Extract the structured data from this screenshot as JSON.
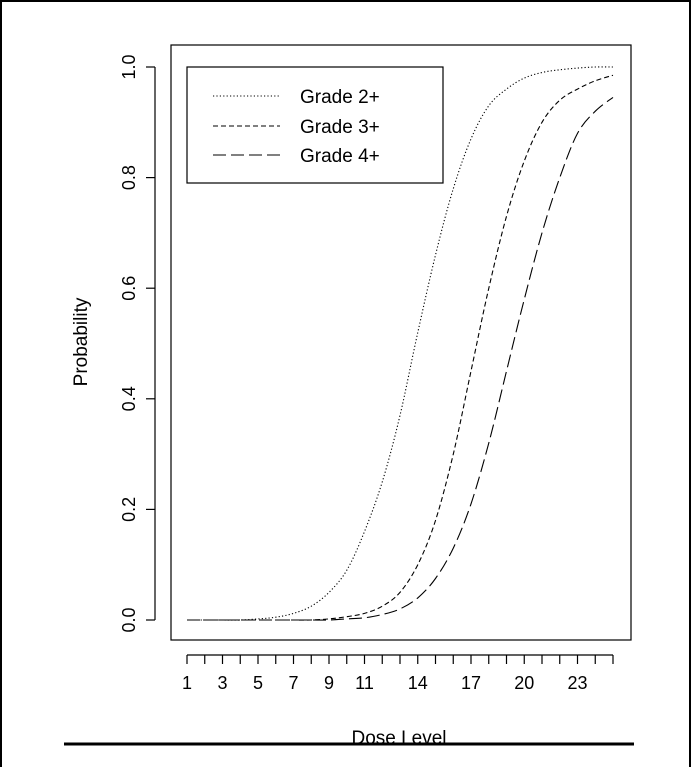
{
  "chart_data": {
    "type": "line",
    "title": "",
    "xlabel": "Dose Level",
    "ylabel": "Probability",
    "xlim": [
      1,
      25
    ],
    "ylim": [
      0,
      1
    ],
    "x_ticks": [
      1,
      2,
      3,
      4,
      5,
      6,
      7,
      8,
      9,
      10,
      11,
      12,
      13,
      14,
      15,
      16,
      17,
      18,
      19,
      20,
      21,
      22,
      23,
      24,
      25
    ],
    "x_tick_labels": [
      "1",
      "3",
      "5",
      "7",
      "9",
      "11",
      "14",
      "17",
      "20",
      "23"
    ],
    "x_tick_label_positions": [
      1,
      3,
      5,
      7,
      9,
      11,
      14,
      17,
      20,
      23
    ],
    "y_ticks": [
      0.0,
      0.2,
      0.4,
      0.6,
      0.8,
      1.0
    ],
    "y_tick_labels": [
      "0.0",
      "0.2",
      "0.4",
      "0.6",
      "0.8",
      "1.0"
    ],
    "legend_position": "top-left",
    "x": [
      1,
      2,
      3,
      4,
      5,
      6,
      7,
      8,
      9,
      10,
      11,
      12,
      13,
      14,
      15,
      16,
      17,
      18,
      19,
      20,
      21,
      22,
      23,
      24,
      25
    ],
    "series": [
      {
        "name": "Grade 2+",
        "dash": "dotted",
        "values": [
          0.0,
          0.0,
          0.0,
          0.0,
          0.002,
          0.005,
          0.012,
          0.025,
          0.05,
          0.09,
          0.16,
          0.25,
          0.37,
          0.52,
          0.66,
          0.78,
          0.87,
          0.93,
          0.96,
          0.98,
          0.99,
          0.995,
          0.998,
          1.0,
          1.0
        ]
      },
      {
        "name": "Grade 3+",
        "dash": "short-dashed",
        "values": [
          0.0,
          0.0,
          0.0,
          0.0,
          0.0,
          0.0,
          0.0,
          0.0,
          0.002,
          0.006,
          0.012,
          0.025,
          0.05,
          0.1,
          0.18,
          0.3,
          0.45,
          0.6,
          0.73,
          0.83,
          0.9,
          0.94,
          0.96,
          0.975,
          0.985
        ]
      },
      {
        "name": "Grade 4+",
        "dash": "long-dashed",
        "values": [
          0.0,
          0.0,
          0.0,
          0.0,
          0.0,
          0.0,
          0.0,
          0.0,
          0.0,
          0.002,
          0.004,
          0.01,
          0.02,
          0.04,
          0.075,
          0.13,
          0.21,
          0.32,
          0.45,
          0.58,
          0.7,
          0.8,
          0.88,
          0.92,
          0.945
        ]
      }
    ]
  }
}
